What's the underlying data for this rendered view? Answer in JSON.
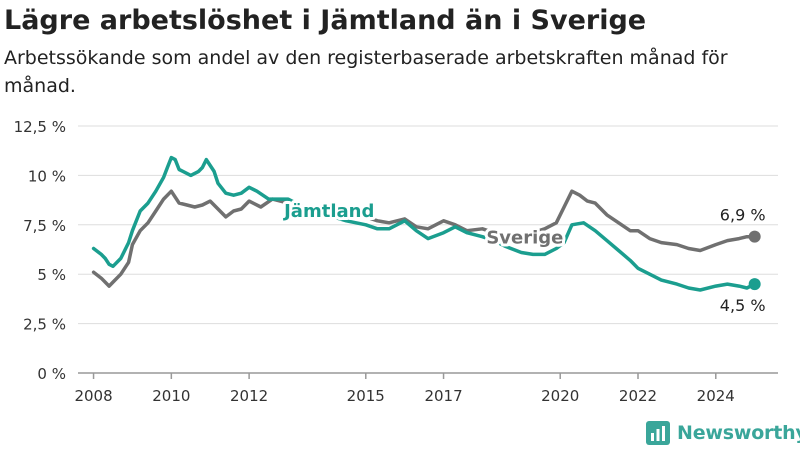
{
  "header": {
    "title": "Lägre arbetslöshet i Jämtland än i Sverige",
    "subtitle": "Arbetssökande som andel av den registerbaserade arbetskraften månad för månad."
  },
  "brand": {
    "name": "Newsworthy",
    "icon": "bar-chart-logo-icon",
    "color": "#3aa69a"
  },
  "chart_data": {
    "type": "line",
    "title": "Lägre arbetslöshet i Jämtland än i Sverige",
    "subtitle": "Arbetssökande som andel av den registerbaserade arbetskraften månad för månad.",
    "xlabel": "",
    "ylabel": "",
    "xlim": [
      2007.6,
      2025.6
    ],
    "ylim": [
      0,
      12.5
    ],
    "y_ticks": [
      {
        "value": 0,
        "label": "0 %"
      },
      {
        "value": 2.5,
        "label": "2,5 %"
      },
      {
        "value": 5,
        "label": "5 %"
      },
      {
        "value": 7.5,
        "label": "7,5 %"
      },
      {
        "value": 10,
        "label": "10 %"
      },
      {
        "value": 12.5,
        "label": "12,5 %"
      }
    ],
    "x_ticks": [
      {
        "value": 2008,
        "label": "2008"
      },
      {
        "value": 2010,
        "label": "2010"
      },
      {
        "value": 2012,
        "label": "2012"
      },
      {
        "value": 2015,
        "label": "2015"
      },
      {
        "value": 2017,
        "label": "2017"
      },
      {
        "value": 2020,
        "label": "2020"
      },
      {
        "value": 2022,
        "label": "2022"
      },
      {
        "value": 2024,
        "label": "2024"
      }
    ],
    "grid": true,
    "series": [
      {
        "name": "Sverige",
        "color": "#707070",
        "x": [
          2008.0,
          2008.2,
          2008.4,
          2008.5,
          2008.7,
          2008.9,
          2009.0,
          2009.2,
          2009.4,
          2009.6,
          2009.8,
          2010.0,
          2010.2,
          2010.4,
          2010.6,
          2010.8,
          2011.0,
          2011.2,
          2011.4,
          2011.6,
          2011.8,
          2012.0,
          2012.3,
          2012.6,
          2013.0,
          2013.5,
          2014.0,
          2014.5,
          2015.0,
          2015.3,
          2015.6,
          2016.0,
          2016.3,
          2016.6,
          2017.0,
          2017.3,
          2017.6,
          2018.0,
          2018.3,
          2018.6,
          2019.0,
          2019.3,
          2019.6,
          2019.9,
          2020.1,
          2020.3,
          2020.5,
          2020.7,
          2020.9,
          2021.2,
          2021.5,
          2021.8,
          2022.0,
          2022.3,
          2022.6,
          2023.0,
          2023.3,
          2023.6,
          2024.0,
          2024.3,
          2024.6,
          2024.8,
          2025.0
        ],
        "values": [
          5.1,
          4.8,
          4.4,
          4.6,
          5.0,
          5.6,
          6.5,
          7.2,
          7.6,
          8.2,
          8.8,
          9.2,
          8.6,
          8.5,
          8.4,
          8.5,
          8.7,
          8.3,
          7.9,
          8.2,
          8.3,
          8.7,
          8.4,
          8.8,
          8.6,
          8.3,
          8.2,
          8.1,
          7.9,
          7.7,
          7.6,
          7.8,
          7.4,
          7.3,
          7.7,
          7.5,
          7.2,
          7.3,
          7.1,
          6.9,
          7.0,
          7.1,
          7.3,
          7.6,
          8.4,
          9.2,
          9.0,
          8.7,
          8.6,
          8.0,
          7.6,
          7.2,
          7.2,
          6.8,
          6.6,
          6.5,
          6.3,
          6.2,
          6.5,
          6.7,
          6.8,
          6.9,
          6.9
        ],
        "end_label": "6,9 %"
      },
      {
        "name": "Jämtland",
        "color": "#1b9e8f",
        "x": [
          2008.0,
          2008.2,
          2008.3,
          2008.4,
          2008.5,
          2008.7,
          2008.9,
          2009.0,
          2009.2,
          2009.4,
          2009.6,
          2009.8,
          2009.9,
          2010.0,
          2010.1,
          2010.2,
          2010.3,
          2010.5,
          2010.7,
          2010.8,
          2010.9,
          2011.1,
          2011.2,
          2011.4,
          2011.6,
          2011.8,
          2012.0,
          2012.2,
          2012.5,
          2013.0,
          2013.5,
          2014.0,
          2014.5,
          2015.0,
          2015.3,
          2015.6,
          2016.0,
          2016.3,
          2016.6,
          2017.0,
          2017.3,
          2017.6,
          2018.0,
          2018.3,
          2018.6,
          2019.0,
          2019.3,
          2019.6,
          2019.9,
          2020.1,
          2020.3,
          2020.6,
          2020.9,
          2021.2,
          2021.5,
          2021.8,
          2022.0,
          2022.3,
          2022.6,
          2023.0,
          2023.3,
          2023.6,
          2024.0,
          2024.3,
          2024.6,
          2024.8,
          2025.0
        ],
        "values": [
          6.3,
          6.0,
          5.8,
          5.5,
          5.4,
          5.8,
          6.6,
          7.2,
          8.2,
          8.6,
          9.2,
          9.9,
          10.4,
          10.9,
          10.8,
          10.3,
          10.2,
          10.0,
          10.2,
          10.4,
          10.8,
          10.2,
          9.6,
          9.1,
          9.0,
          9.1,
          9.4,
          9.2,
          8.8,
          8.8,
          8.3,
          8.0,
          7.7,
          7.5,
          7.3,
          7.3,
          7.7,
          7.2,
          6.8,
          7.1,
          7.4,
          7.1,
          6.9,
          6.7,
          6.4,
          6.1,
          6.0,
          6.0,
          6.3,
          6.6,
          7.5,
          7.6,
          7.2,
          6.7,
          6.2,
          5.7,
          5.3,
          5.0,
          4.7,
          4.5,
          4.3,
          4.2,
          4.4,
          4.5,
          4.4,
          4.3,
          4.5
        ],
        "end_label": "4,5 %"
      }
    ],
    "annotations": [
      {
        "series": "Jämtland",
        "text": "Jämtland"
      },
      {
        "series": "Sverige",
        "text": "Sverige"
      }
    ]
  }
}
